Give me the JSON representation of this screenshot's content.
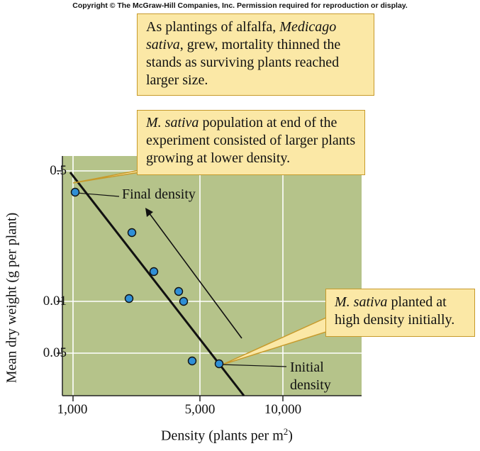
{
  "copyright": "Copyright © The McGraw-Hill Companies, Inc. Permission required for reproduction or display.",
  "callouts": {
    "top": {
      "text_plain_1": "As plantings of alfalfa, ",
      "species_italic": "Medicago sativa",
      "text_plain_2": ", grew, mortality thinned the stands as surviving plants reached larger size."
    },
    "middle": {
      "species_italic": "M. sativa",
      "text_plain": " population at end of the experiment consisted of larger plants growing at lower density."
    },
    "low": {
      "species_italic": "M. sativa",
      "text_plain": " planted at high density initially."
    }
  },
  "annotations": {
    "final": "Final density",
    "initial_line1": "Initial",
    "initial_line2": "density"
  },
  "colors": {
    "plot_bg": "#b5c38a",
    "callout_bg": "#fbe8a6",
    "callout_border": "#c79a2b",
    "point_fill": "#2f8fd6",
    "grid": "#ffffff"
  },
  "chart_data": {
    "type": "scatter",
    "xlabel": "Density (plants per m",
    "xlabel_superscript": "2",
    "xlabel_close": ")",
    "ylabel": "Mean dry weight (g per plant)",
    "x_ticks": [
      1000,
      5000,
      10000
    ],
    "x_tick_labels": [
      "1,000",
      "5,000",
      "10,000"
    ],
    "y_tick_labels": [
      "0.5",
      "0.01",
      "0.05"
    ],
    "grid": true,
    "points": [
      {
        "x": 1050,
        "y": 0.38
      },
      {
        "x": 3700,
        "y": 0.215
      },
      {
        "x": 4600,
        "y": 0.117
      },
      {
        "x": 5850,
        "y": 0.074
      },
      {
        "x": 6100,
        "y": 0.064
      },
      {
        "x": 3650,
        "y": 0.066
      },
      {
        "x": 6300,
        "y": 0.034
      },
      {
        "x": 7100,
        "y": 0.033
      }
    ],
    "trend_line": {
      "start": {
        "x": 1000,
        "y": 0.5
      },
      "end": {
        "x": 7100,
        "y": 0.016
      }
    },
    "arrow": {
      "from": {
        "x": 8000,
        "y": 0.04
      },
      "to": {
        "x": 4000,
        "y": 0.3
      }
    }
  }
}
